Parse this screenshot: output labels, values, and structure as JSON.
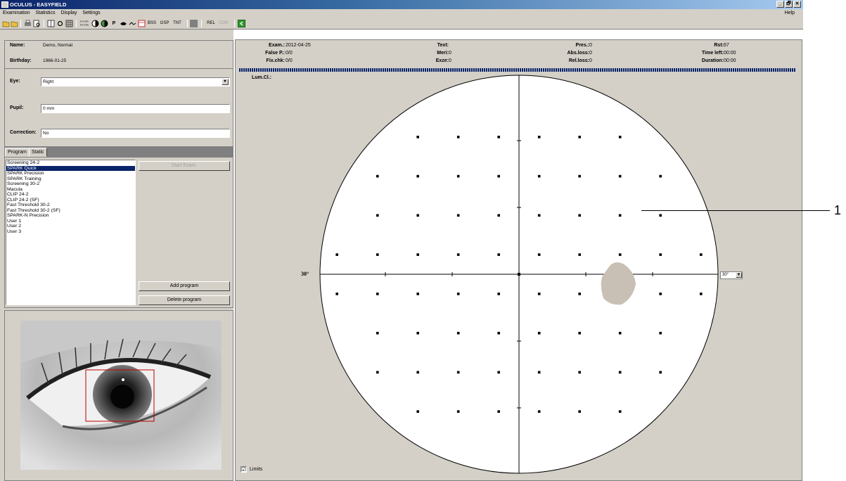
{
  "window": {
    "title": "OCULUS - EASYFIELD",
    "buttons": [
      "_",
      "🗗",
      "✕"
    ]
  },
  "menu": {
    "items": [
      "Examination",
      "Statistics",
      "Display",
      "Settings"
    ],
    "help": "Help"
  },
  "toolbar": {
    "labels": {
      "pt": "PT PP PT PR",
      "p": "P",
      "bss": "BSS",
      "gsp": "GSP",
      "tnt": "TNT",
      "rel": "REL",
      "cor": "COR"
    }
  },
  "patient": {
    "name_label": "Name:",
    "name": "Demo, Normal",
    "birthday_label": "Birthday:",
    "birthday": "1966-01-25",
    "eye_label": "Eye:",
    "eye": "Right",
    "pupil_label": "Pupil:",
    "pupil": "0 mm",
    "correction_label": "Correction:",
    "correction": "No"
  },
  "tabs": [
    "Program",
    "Static"
  ],
  "programs": {
    "items": [
      "Screening 24-2",
      "SPARK Quick",
      "SPARK Precision",
      "SPARK Training",
      "Screening 30-2",
      "Macula",
      "CLIP 24-2",
      "CLIP 24-2 (SF)",
      "Fast Threshold 30-2",
      "Fast Threshold 30-2 (SF)",
      "SPARK-N Precision",
      "User 1",
      "User 2",
      "User 3"
    ],
    "selected_index": 1,
    "start_button": "Start Exam.",
    "add_button": "Add program",
    "delete_button": "Delete program"
  },
  "stats": {
    "exam_label": "Exam.:",
    "exam": "2012-04-25",
    "falsep_label": "False P.:",
    "falsep": "0/0",
    "fixchk_label": "Fix.chk:",
    "fixchk": "0/0",
    "text_label": "Text:",
    "meri_label": "Meri:",
    "meri": "0",
    "exze_label": "Exze:",
    "exze": "0",
    "pres_label": "Pres.:",
    "pres": "0",
    "absloss_label": "Abs.loss:",
    "absloss": "0",
    "relloss_label": "Rel.loss:",
    "relloss": "0",
    "rst_label": "Rst:",
    "rst": "67",
    "timeleft_label": "Time left:",
    "timeleft": "00:00",
    "duration_label": "Duration:",
    "duration": "00:00"
  },
  "field": {
    "lum_label": "Lum.Cl.:",
    "degree_label": "30°",
    "zoom_value": "30°",
    "limits_label": "Limits",
    "limits_checked": "☑",
    "callout": "1"
  },
  "colors": {
    "selection": "#0a246a",
    "panel": "#d4d0c8",
    "scotoma": "#c8c0b4"
  }
}
